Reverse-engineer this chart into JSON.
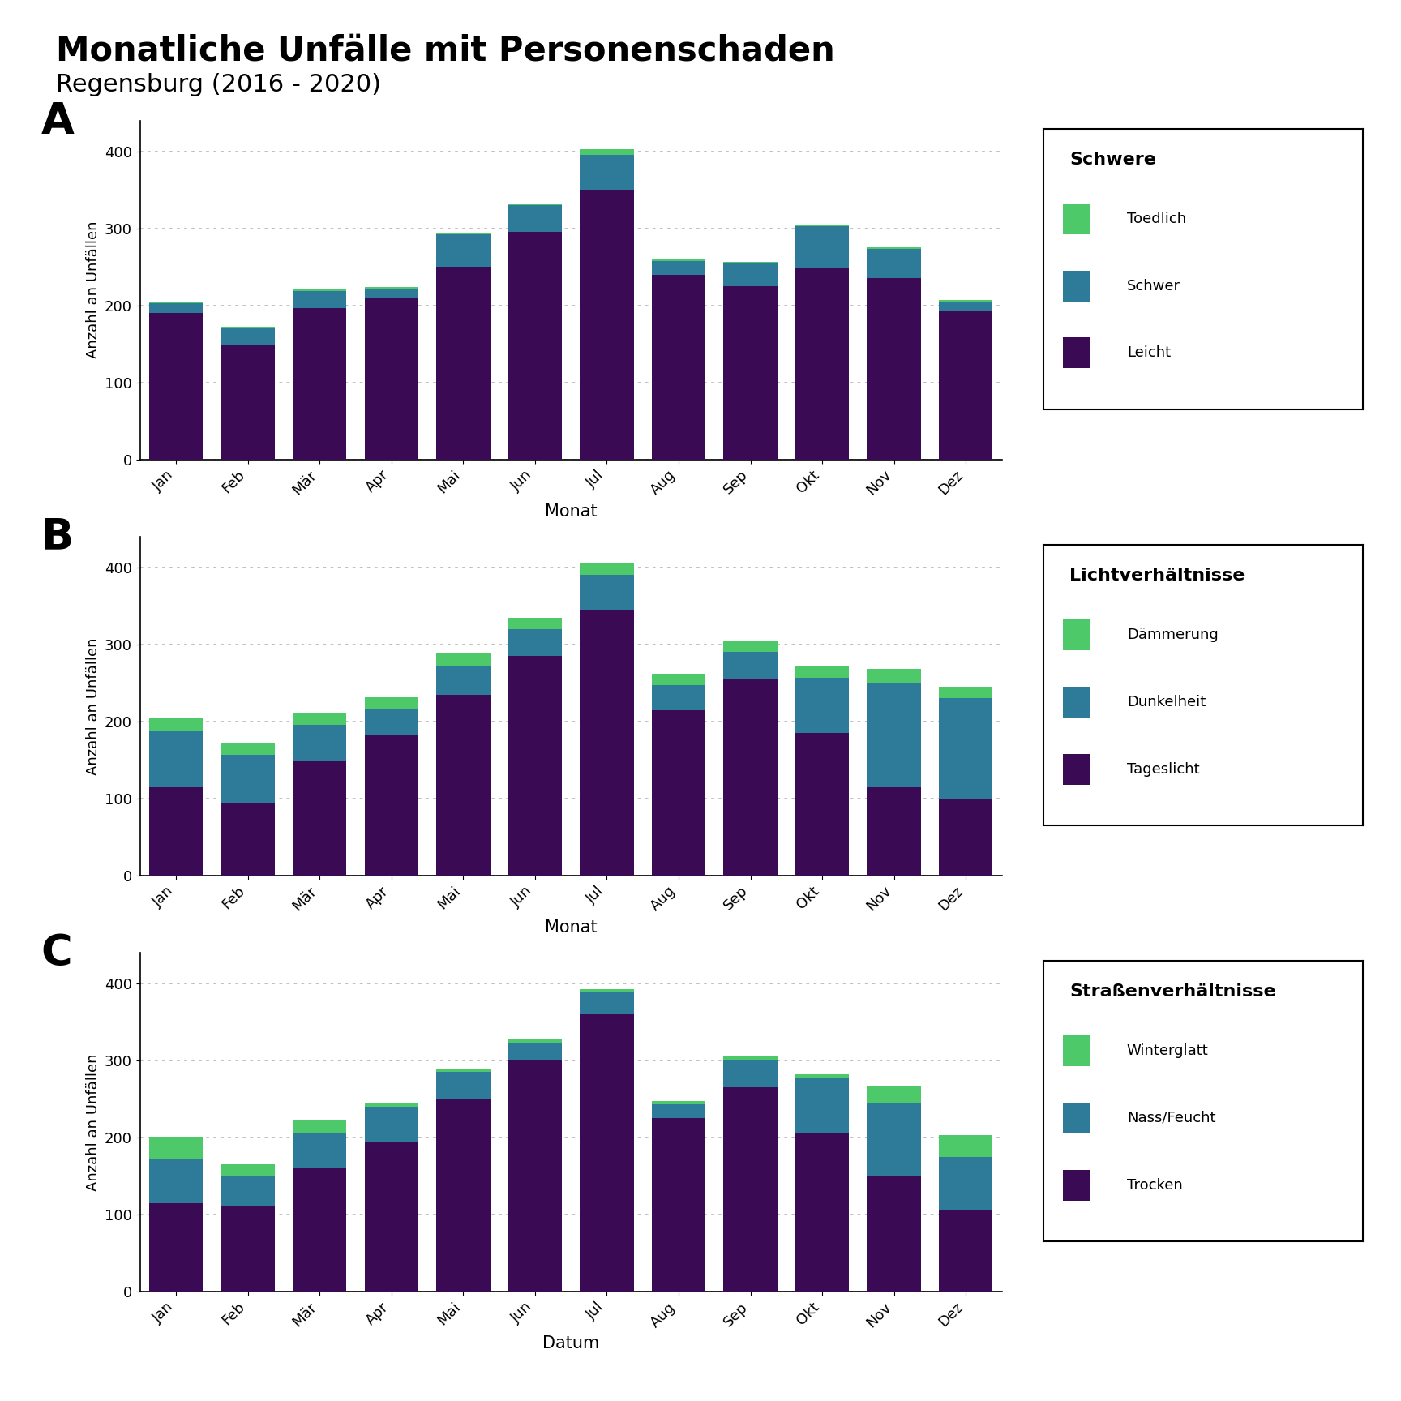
{
  "title": "Monatliche Unfälle mit Personenschaden",
  "subtitle": "Regensburg (2016 - 2020)",
  "months": [
    "Jan",
    "Feb",
    "Mär",
    "Apr",
    "Mai",
    "Jun",
    "Jul",
    "Aug",
    "Sep",
    "Okt",
    "Nov",
    "Dez"
  ],
  "chart_A": {
    "label": "A",
    "xlabel": "Monat",
    "ylabel": "Anzahl an Unfällen",
    "legend_title": "Schwere",
    "legend_labels_top_to_bot": [
      "Toedlich",
      "Schwer",
      "Leicht"
    ],
    "data": {
      "Leicht": [
        190,
        148,
        197,
        210,
        250,
        295,
        350,
        240,
        225,
        248,
        235,
        192
      ],
      "Schwer": [
        13,
        22,
        22,
        12,
        42,
        35,
        45,
        18,
        30,
        55,
        38,
        13
      ],
      "Toedlich": [
        2,
        2,
        2,
        2,
        2,
        2,
        8,
        2,
        2,
        2,
        2,
        2
      ]
    }
  },
  "chart_B": {
    "label": "B",
    "xlabel": "Monat",
    "ylabel": "Anzahl an Unfällen",
    "legend_title": "Lichtverhältnisse",
    "legend_labels_top_to_bot": [
      "Dämmerung",
      "Dunkelheit",
      "Tageslicht"
    ],
    "data": {
      "Tageslicht": [
        115,
        95,
        148,
        182,
        235,
        285,
        345,
        215,
        255,
        185,
        115,
        100
      ],
      "Dunkelheit": [
        72,
        62,
        48,
        35,
        38,
        35,
        45,
        32,
        35,
        72,
        135,
        130
      ],
      "Dämmerung": [
        18,
        14,
        15,
        15,
        15,
        15,
        15,
        15,
        15,
        15,
        18,
        15
      ]
    }
  },
  "chart_C": {
    "label": "C",
    "xlabel": "Datum",
    "ylabel": "Anzahl an Unfällen",
    "legend_title": "Straßenverhältnisse",
    "legend_labels_top_to_bot": [
      "Winterglatt",
      "Nass/Feucht",
      "Trocken"
    ],
    "data": {
      "Trocken": [
        115,
        112,
        160,
        195,
        250,
        300,
        360,
        225,
        265,
        205,
        150,
        105
      ],
      "Nass/Feucht": [
        58,
        38,
        45,
        45,
        35,
        22,
        28,
        18,
        35,
        72,
        95,
        70
      ],
      "Winterglatt": [
        28,
        15,
        18,
        5,
        5,
        5,
        5,
        5,
        5,
        5,
        22,
        28
      ]
    }
  },
  "color_bot": "#3b0a54",
  "color_mid": "#2d7b99",
  "color_top": "#4dc96a",
  "background_color": "#ffffff",
  "bar_width": 0.75,
  "ylim": [
    0,
    440
  ],
  "yticks": [
    0,
    100,
    200,
    300,
    400
  ],
  "grid_color": "#bbbbbb"
}
